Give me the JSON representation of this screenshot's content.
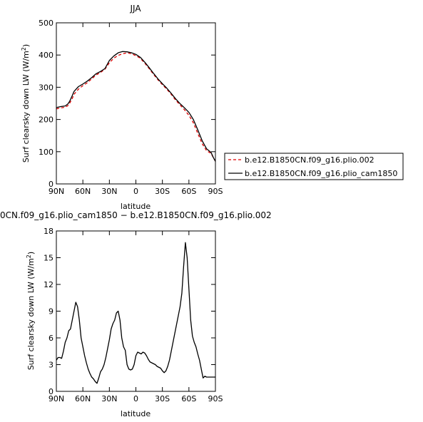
{
  "chart_data": [
    {
      "type": "line",
      "title": "JJA",
      "xlabel": "latitude",
      "ylabel": "Surf clearsky down LW (W/m",
      "ylabel_sup": "2",
      "ylabel_close": ")",
      "xlim": [
        90,
        -90
      ],
      "ylim": [
        0,
        500
      ],
      "xticks": [
        {
          "value": 90,
          "label": "90N"
        },
        {
          "value": 60,
          "label": "60N"
        },
        {
          "value": 30,
          "label": "30N"
        },
        {
          "value": 0,
          "label": "0"
        },
        {
          "value": -30,
          "label": "30S"
        },
        {
          "value": -60,
          "label": "60S"
        },
        {
          "value": -90,
          "label": "90S"
        }
      ],
      "yticks": [
        {
          "value": 0,
          "label": "0"
        },
        {
          "value": 100,
          "label": "100"
        },
        {
          "value": 200,
          "label": "200"
        },
        {
          "value": 300,
          "label": "300"
        },
        {
          "value": 400,
          "label": "400"
        },
        {
          "value": 500,
          "label": "500"
        }
      ],
      "legend_position": "right",
      "x": [
        90,
        85,
        80,
        77,
        75,
        72,
        70,
        65,
        60,
        55,
        50,
        45,
        40,
        35,
        30,
        25,
        20,
        15,
        10,
        5,
        0,
        -5,
        -10,
        -15,
        -20,
        -25,
        -30,
        -35,
        -40,
        -45,
        -50,
        -55,
        -60,
        -65,
        -70,
        -75,
        -80,
        -85,
        -88,
        -90
      ],
      "series": [
        {
          "name": "b.e12.B1850CN.f09_g16.plio.002",
          "color": "#dd0000",
          "dash": "dashed",
          "values": [
            233,
            236,
            238,
            243,
            250,
            265,
            278,
            294,
            305,
            314,
            326,
            338,
            346,
            356,
            376,
            390,
            399,
            404,
            407,
            404,
            398,
            390,
            375,
            358,
            340,
            323,
            308,
            294,
            278,
            260,
            245,
            230,
            213,
            190,
            157,
            125,
            103,
            95,
            80,
            70
          ]
        },
        {
          "name": "b.e12.B1850CN.f09_g16.plio_cam1850",
          "color": "#000000",
          "dash": "solid",
          "values": [
            237,
            240,
            242,
            248,
            256,
            274,
            287,
            302,
            310,
            319,
            330,
            342,
            349,
            358,
            383,
            397,
            407,
            411,
            410,
            407,
            402,
            393,
            378,
            361,
            343,
            326,
            311,
            297,
            281,
            264,
            249,
            236,
            222,
            200,
            168,
            134,
            109,
            98,
            80,
            70
          ]
        }
      ]
    },
    {
      "type": "line",
      "title": "0CN.f09_g16.plio_cam1850 − b.e12.B1850CN.f09_g16.plio.002",
      "xlabel": "latitude",
      "ylabel": "Surf clearsky down LW (W/m",
      "ylabel_sup": "2",
      "ylabel_close": ")",
      "xlim": [
        90,
        -90
      ],
      "ylim": [
        0,
        18
      ],
      "xticks": [
        {
          "value": 90,
          "label": "90N"
        },
        {
          "value": 60,
          "label": "60N"
        },
        {
          "value": 30,
          "label": "30N"
        },
        {
          "value": 0,
          "label": "0"
        },
        {
          "value": -30,
          "label": "30S"
        },
        {
          "value": -60,
          "label": "60S"
        },
        {
          "value": -90,
          "label": "90S"
        }
      ],
      "yticks": [
        {
          "value": 0,
          "label": "0"
        },
        {
          "value": 3,
          "label": "3"
        },
        {
          "value": 6,
          "label": "6"
        },
        {
          "value": 9,
          "label": "9"
        },
        {
          "value": 12,
          "label": "12"
        },
        {
          "value": 15,
          "label": "15"
        },
        {
          "value": 18,
          "label": "18"
        }
      ],
      "x": [
        90,
        88,
        86,
        84,
        82,
        80,
        78,
        76,
        74,
        72,
        70,
        68,
        66,
        64,
        62,
        60,
        58,
        56,
        54,
        52,
        50,
        48,
        46,
        44,
        42,
        40,
        38,
        36,
        34,
        32,
        30,
        28,
        26,
        24,
        22,
        20,
        18,
        16,
        14,
        12,
        10,
        8,
        6,
        4,
        2,
        0,
        -2,
        -4,
        -6,
        -8,
        -10,
        -12,
        -14,
        -16,
        -18,
        -20,
        -22,
        -24,
        -26,
        -28,
        -30,
        -32,
        -34,
        -36,
        -38,
        -40,
        -42,
        -44,
        -46,
        -48,
        -50,
        -52,
        -54,
        -56,
        -58,
        -60,
        -62,
        -64,
        -66,
        -68,
        -70,
        -72,
        -74,
        -76,
        -78,
        -80,
        -82,
        -84,
        -86,
        -88,
        -90
      ],
      "series": [
        {
          "name": "",
          "color": "#000000",
          "dash": "solid",
          "values": [
            3.5,
            3.8,
            3.8,
            3.7,
            4.5,
            5.5,
            6.0,
            6.8,
            7.0,
            8.0,
            9.0,
            10.0,
            9.5,
            8.0,
            6.0,
            5.0,
            4.0,
            3.2,
            2.5,
            2.0,
            1.6,
            1.4,
            1.1,
            0.9,
            1.5,
            2.2,
            2.5,
            3.0,
            3.8,
            4.8,
            5.8,
            7.0,
            7.6,
            8.0,
            8.8,
            9.0,
            8.0,
            6.0,
            5.0,
            4.6,
            3.0,
            2.5,
            2.4,
            2.5,
            3.0,
            4.0,
            4.4,
            4.3,
            4.2,
            4.4,
            4.3,
            4.0,
            3.6,
            3.3,
            3.2,
            3.1,
            3.0,
            2.8,
            2.7,
            2.6,
            2.3,
            2.1,
            2.3,
            2.8,
            3.5,
            4.5,
            5.5,
            6.5,
            7.5,
            8.5,
            9.5,
            11.0,
            14.0,
            16.7,
            15.0,
            11.5,
            8.0,
            6.2,
            5.5,
            5.0,
            4.2,
            3.5,
            2.5,
            1.5,
            1.7,
            1.6,
            1.6,
            1.6,
            1.6,
            1.6,
            1.6
          ]
        }
      ]
    }
  ]
}
